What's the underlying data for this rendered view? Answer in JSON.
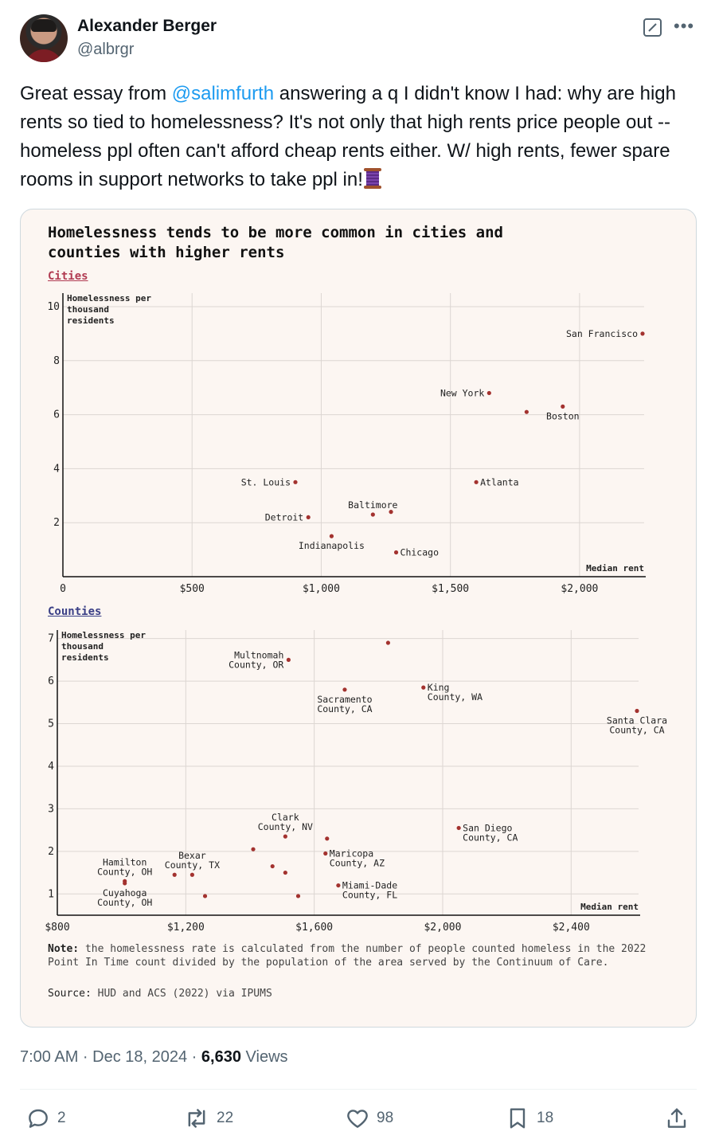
{
  "author": {
    "display_name": "Alexander Berger",
    "handle": "@albrgr"
  },
  "tweet": {
    "text_before": "Great essay from ",
    "mention": "@salimfurth",
    "text_after": " answering a q I didn't know I had: why are high rents so tied to homelessness? It's not only that high rents price people out -- homeless ppl often can't afford cheap rents either. W/ high rents, fewer spare rooms in support networks to take ppl in!"
  },
  "image": {
    "title": "Homelessness tends to be more common in cities and\ncounties with higher rents",
    "note_label": "Note:",
    "note_text": " the homelessness rate is calculated from the number of people counted homeless in the 2022 Point In Time count divided by the population of the area served by the Continuum of Care.",
    "source_label": "Source:",
    "source_text": " HUD and ACS (2022) via IPUMS"
  },
  "chart_data": [
    {
      "type": "scatter",
      "panel_label": "Cities",
      "ylabel": "Homelessness per thousand residents",
      "xlabel": "Median rent",
      "xlim": [
        0,
        2250
      ],
      "ylim": [
        0,
        10.5
      ],
      "x_ticks": [
        0,
        500,
        1000,
        1500,
        2000
      ],
      "x_tick_labels": [
        "0",
        "$500",
        "$1,000",
        "$1,500",
        "$2,000"
      ],
      "y_ticks": [
        2,
        4,
        6,
        8,
        10
      ],
      "y_tick_labels": [
        "2",
        "4",
        "6",
        "8",
        "10"
      ],
      "color": "#a3322f",
      "points": [
        {
          "label": "San Francisco",
          "x": 2260,
          "y": 9.0,
          "anchor": "end"
        },
        {
          "label": "New York",
          "x": 1650,
          "y": 6.8,
          "anchor": "end"
        },
        {
          "label": "",
          "x": 1795,
          "y": 6.1,
          "anchor": "start"
        },
        {
          "label": "Boston",
          "x": 1935,
          "y": 6.3,
          "anchor": "below"
        },
        {
          "label": "Atlanta",
          "x": 1600,
          "y": 3.5,
          "anchor": "start"
        },
        {
          "label": "St. Louis",
          "x": 900,
          "y": 3.5,
          "anchor": "end"
        },
        {
          "label": "Baltimore",
          "x": 1200,
          "y": 2.3,
          "anchor": "above"
        },
        {
          "label": "",
          "x": 1270,
          "y": 2.4,
          "anchor": "start"
        },
        {
          "label": "Detroit",
          "x": 950,
          "y": 2.2,
          "anchor": "end"
        },
        {
          "label": "Indianapolis",
          "x": 1040,
          "y": 1.5,
          "anchor": "below"
        },
        {
          "label": "Chicago",
          "x": 1290,
          "y": 0.9,
          "anchor": "start"
        }
      ]
    },
    {
      "type": "scatter",
      "panel_label": "Counties",
      "ylabel": "Homelessness per thousand residents",
      "xlabel": "Median rent",
      "xlim": [
        800,
        2610
      ],
      "ylim": [
        0.5,
        7.2
      ],
      "x_ticks": [
        800,
        1200,
        1600,
        2000,
        2400
      ],
      "x_tick_labels": [
        "$800",
        "$1,200",
        "$1,600",
        "$2,000",
        "$2,400"
      ],
      "y_ticks": [
        1,
        2,
        3,
        4,
        5,
        6,
        7
      ],
      "y_tick_labels": [
        "1",
        "2",
        "3",
        "4",
        "5",
        "6",
        "7"
      ],
      "color": "#a3322f",
      "points": [
        {
          "label": "Multnomah County, OR",
          "x": 1520,
          "y": 6.5,
          "anchor": "end"
        },
        {
          "label": "",
          "x": 1830,
          "y": 6.9,
          "anchor": "start"
        },
        {
          "label": "Sacramento County, CA",
          "x": 1695,
          "y": 5.8,
          "anchor": "below"
        },
        {
          "label": "King County, WA",
          "x": 1940,
          "y": 5.85,
          "anchor": "start"
        },
        {
          "label": "Santa Clara County, CA",
          "x": 2630,
          "y": 5.3,
          "anchor": "below"
        },
        {
          "label": "Clark County, NV",
          "x": 1510,
          "y": 2.35,
          "anchor": "above"
        },
        {
          "label": "",
          "x": 1640,
          "y": 2.3,
          "anchor": "start"
        },
        {
          "label": "",
          "x": 1410,
          "y": 2.05,
          "anchor": "start"
        },
        {
          "label": "Maricopa County, AZ",
          "x": 1635,
          "y": 1.95,
          "anchor": "start"
        },
        {
          "label": "",
          "x": 1470,
          "y": 1.65,
          "anchor": "start"
        },
        {
          "label": "",
          "x": 1510,
          "y": 1.5,
          "anchor": "start"
        },
        {
          "label": "Bexar County, TX",
          "x": 1220,
          "y": 1.45,
          "anchor": "above"
        },
        {
          "label": "",
          "x": 1165,
          "y": 1.45,
          "anchor": "start"
        },
        {
          "label": "Hamilton County, OH",
          "x": 1010,
          "y": 1.3,
          "anchor": "above"
        },
        {
          "label": "Cuyahoga County, OH",
          "x": 1010,
          "y": 1.25,
          "anchor": "below"
        },
        {
          "label": "",
          "x": 1260,
          "y": 0.95,
          "anchor": "start"
        },
        {
          "label": "",
          "x": 1550,
          "y": 0.95,
          "anchor": "start"
        },
        {
          "label": "Miami-Dade County, FL",
          "x": 1675,
          "y": 1.2,
          "anchor": "start"
        },
        {
          "label": "San Diego County, CA",
          "x": 2050,
          "y": 2.55,
          "anchor": "start"
        }
      ]
    }
  ],
  "footer": {
    "timestamp": "7:00 AM · Dec 18, 2024 · ",
    "views_count": "6,630",
    "views_label": " Views"
  },
  "actions": {
    "replies": "2",
    "reposts": "22",
    "likes": "98",
    "bookmarks": "18"
  },
  "colors": {
    "link": "#1d9bf0",
    "muted": "#536471",
    "cities_label": "#b13b52",
    "counties_label": "#3a3f86",
    "point": "#a3322f"
  }
}
